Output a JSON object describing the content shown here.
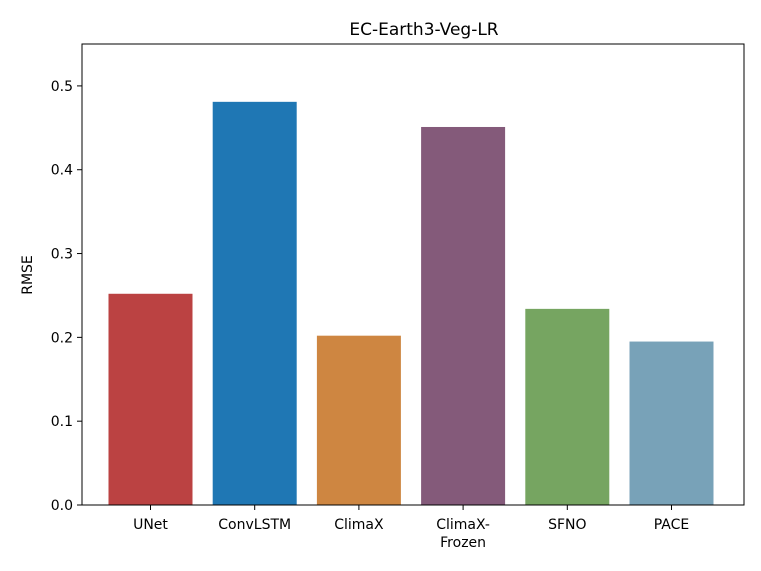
{
  "chart_data": {
    "type": "bar",
    "title": "EC-Earth3-Veg-LR",
    "xlabel": "",
    "ylabel": "RMSE",
    "ylim": [
      0,
      0.55
    ],
    "yticks": [
      "0.0",
      "0.1",
      "0.2",
      "0.3",
      "0.4",
      "0.5"
    ],
    "grid": false,
    "categories": [
      [
        "UNet"
      ],
      [
        "ConvLSTM"
      ],
      [
        "ClimaX"
      ],
      [
        "ClimaX-",
        "Frozen"
      ],
      [
        "SFNO"
      ],
      [
        "PACE"
      ]
    ],
    "values": [
      0.252,
      0.481,
      0.202,
      0.451,
      0.234,
      0.195
    ],
    "colors": [
      "#bb4242",
      "#1f77b4",
      "#ce8641",
      "#845a7a",
      "#76a561",
      "#78a2b8"
    ]
  }
}
